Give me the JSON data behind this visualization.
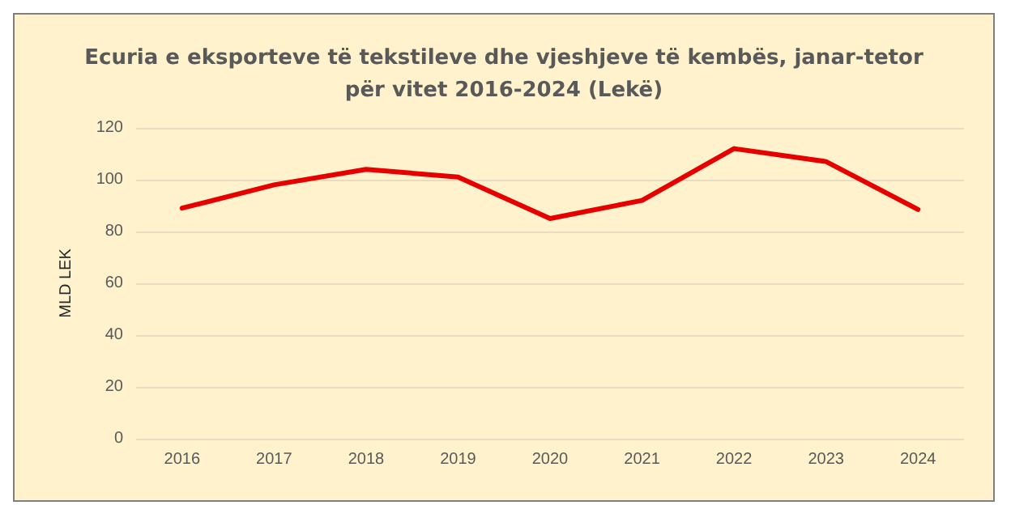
{
  "chart_data": {
    "type": "line",
    "title": "Ecuria e eksporteve të tekstileve dhe vjeshjeve të kembës, janar-tetor\npër vitet 2016-2024 (Lekë)",
    "ylabel": "MLD LEK",
    "categories": [
      "2016",
      "2017",
      "2018",
      "2019",
      "2020",
      "2021",
      "2022",
      "2023",
      "2024"
    ],
    "series": [
      {
        "color": "#e60000",
        "values": [
          89,
          98,
          104,
          101,
          85,
          92,
          112,
          107,
          88.5
        ]
      }
    ],
    "ylim": [
      0,
      120
    ],
    "yticks": [
      0,
      20,
      40,
      60,
      80,
      100,
      120
    ],
    "grid": "y",
    "marker": "none",
    "line_style": "solid"
  }
}
